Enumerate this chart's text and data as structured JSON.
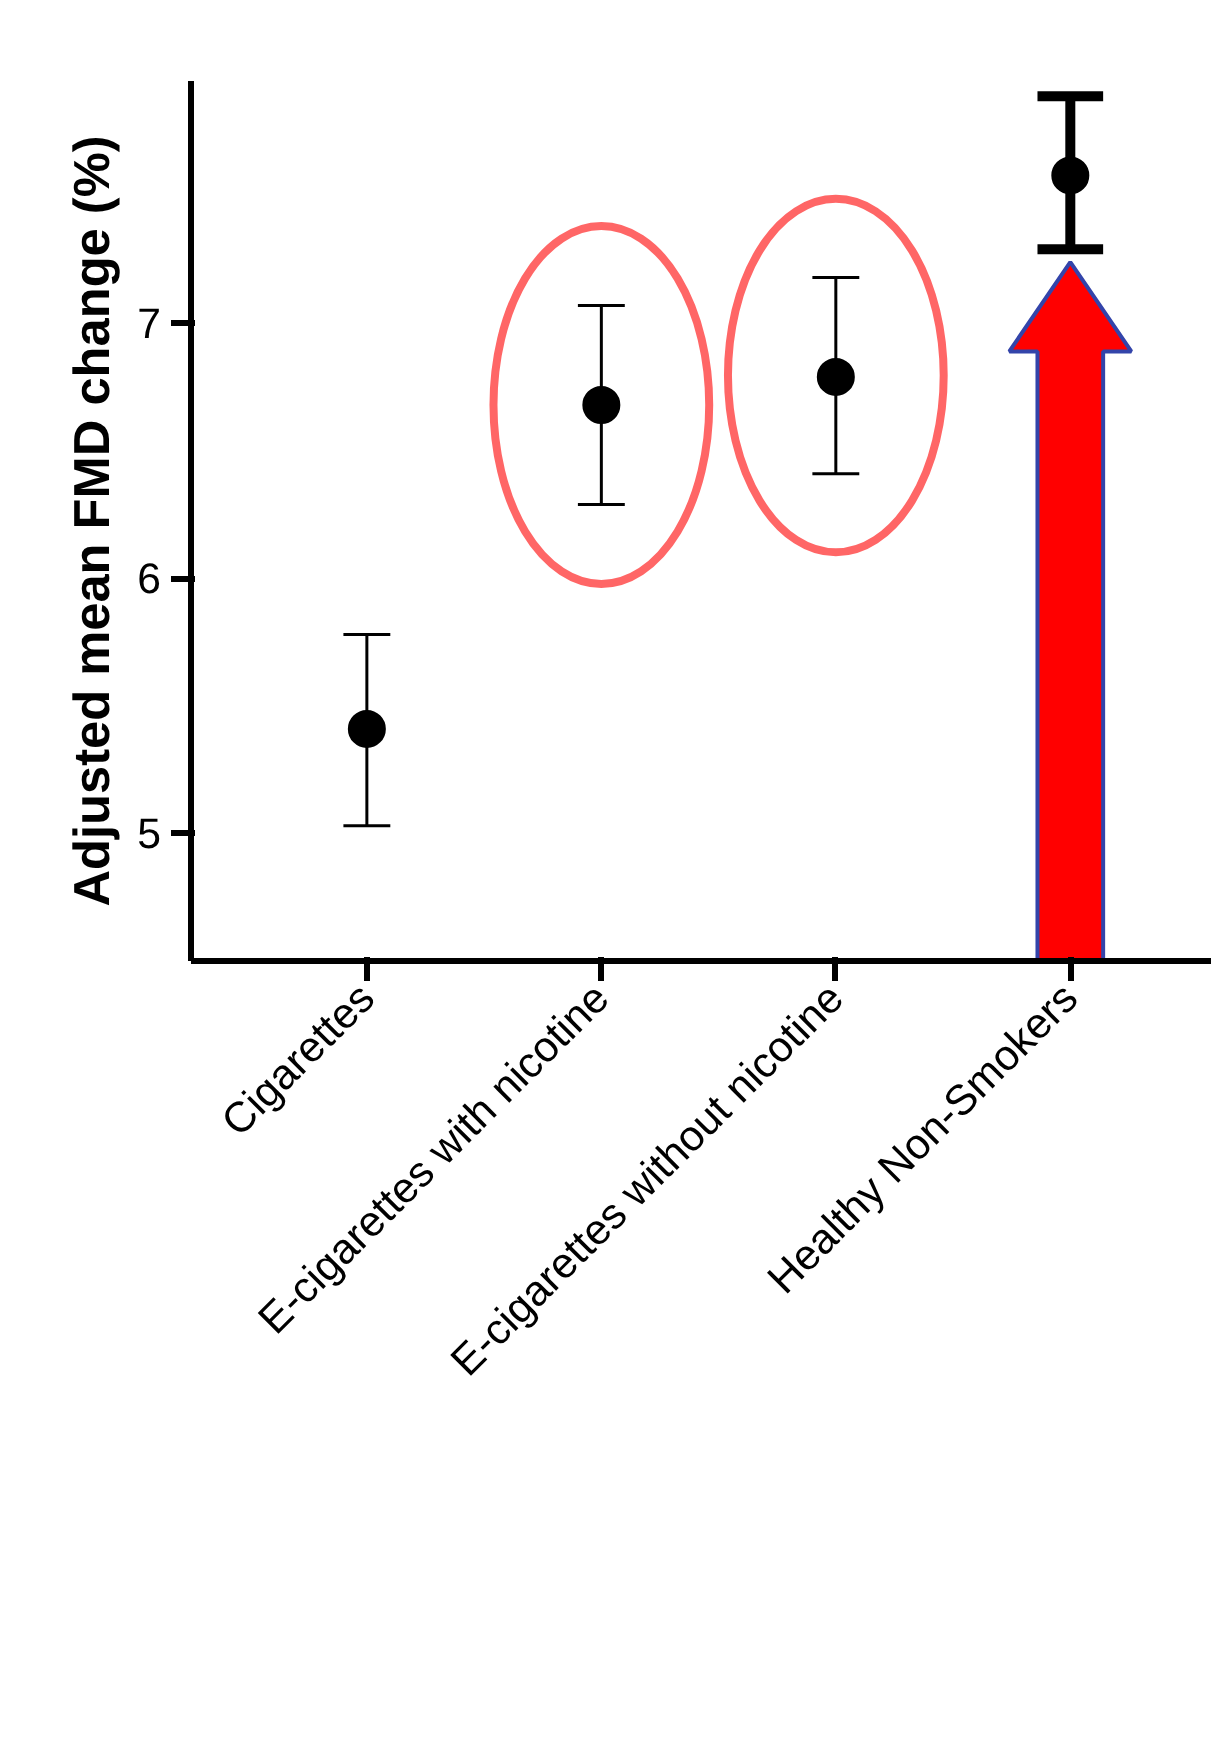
{
  "chart_data": {
    "type": "scatter",
    "ylabel": "Adjusted mean FMD change (%)",
    "categories": [
      "Cigarettes",
      "E-cigarettes with nicotine",
      "E-cigarettes without nicotine",
      "Healthy Non-Smokers"
    ],
    "values": [
      5.41,
      6.68,
      6.79,
      7.58
    ],
    "errors": [
      [
        5.03,
        5.78
      ],
      [
        6.29,
        7.07
      ],
      [
        6.41,
        7.18
      ],
      [
        7.29,
        7.89
      ]
    ],
    "color": "#000000",
    "marker": "circle",
    "ylim": [
      4.5,
      7.95
    ],
    "yticks": [
      5,
      6,
      7
    ],
    "grid": false
  }
}
